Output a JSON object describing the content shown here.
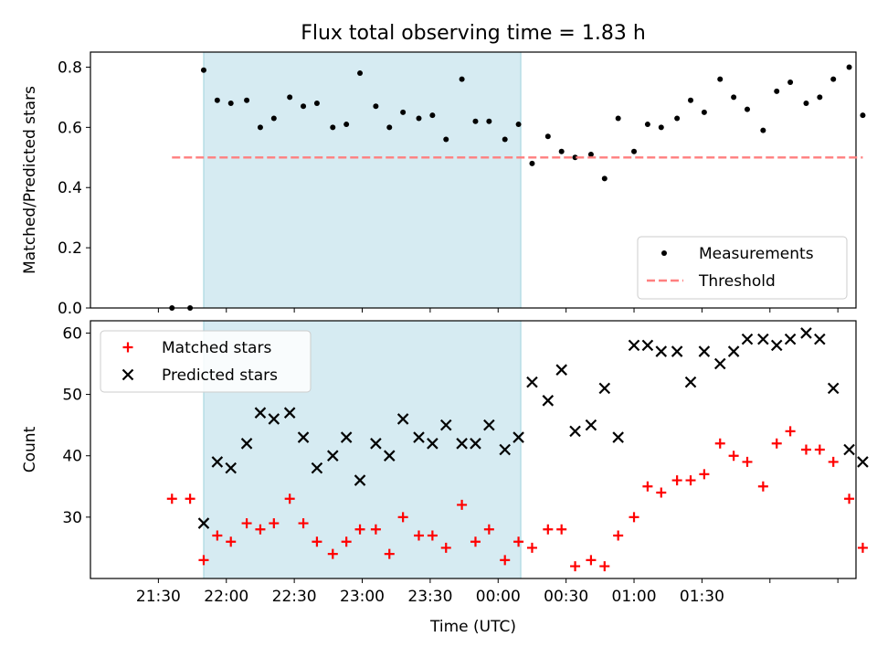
{
  "title": "Flux total observing time = 1.83 h",
  "chart_data": [
    {
      "panel": "top",
      "type": "scatter",
      "ylabel": "Matched/Predicted stars",
      "ylim": [
        0,
        0.85
      ],
      "yticks": [
        0.0,
        0.2,
        0.4,
        0.6,
        0.8
      ],
      "ytick_labels": [
        "0.0",
        "0.2",
        "0.4",
        "0.6",
        "0.8"
      ],
      "x_unit": "minutes after 21:30 UTC",
      "xlim": [
        -30,
        308
      ],
      "highlight_span": {
        "start": 20,
        "end": 160
      },
      "legend": {
        "position": "lower-right",
        "entries": [
          "Measurements",
          "Threshold"
        ]
      },
      "series": [
        {
          "name": "Measurements",
          "color": "#000000",
          "points": [
            [
              6,
              0.0
            ],
            [
              14,
              0.0
            ],
            [
              20,
              0.79
            ],
            [
              26,
              0.69
            ],
            [
              32,
              0.68
            ],
            [
              39,
              0.69
            ],
            [
              45,
              0.6
            ],
            [
              51,
              0.63
            ],
            [
              58,
              0.7
            ],
            [
              64,
              0.67
            ],
            [
              70,
              0.68
            ],
            [
              77,
              0.6
            ],
            [
              83,
              0.61
            ],
            [
              89,
              0.78
            ],
            [
              96,
              0.67
            ],
            [
              102,
              0.6
            ],
            [
              108,
              0.65
            ],
            [
              115,
              0.63
            ],
            [
              121,
              0.64
            ],
            [
              127,
              0.56
            ],
            [
              134,
              0.76
            ],
            [
              140,
              0.62
            ],
            [
              146,
              0.62
            ],
            [
              153,
              0.56
            ],
            [
              159,
              0.61
            ],
            [
              165,
              0.48
            ],
            [
              172,
              0.57
            ],
            [
              178,
              0.52
            ],
            [
              184,
              0.5
            ],
            [
              191,
              0.51
            ],
            [
              197,
              0.43
            ],
            [
              203,
              0.63
            ],
            [
              210,
              0.52
            ],
            [
              216,
              0.61
            ],
            [
              222,
              0.6
            ],
            [
              229,
              0.63
            ],
            [
              235,
              0.69
            ],
            [
              241,
              0.65
            ],
            [
              248,
              0.76
            ],
            [
              254,
              0.7
            ],
            [
              260,
              0.66
            ],
            [
              267,
              0.59
            ],
            [
              273,
              0.72
            ],
            [
              279,
              0.75
            ],
            [
              286,
              0.68
            ],
            [
              292,
              0.7
            ],
            [
              298,
              0.76
            ],
            [
              305,
              0.8
            ],
            [
              311,
              0.64
            ]
          ]
        },
        {
          "name": "Threshold",
          "color": "#ff7f7f",
          "style": "dashed",
          "value": 0.5,
          "x_range": [
            6,
            311
          ]
        }
      ]
    },
    {
      "panel": "bottom",
      "type": "scatter",
      "ylabel": "Count",
      "xlabel": "Time (UTC)",
      "ylim": [
        20,
        62
      ],
      "yticks": [
        30,
        40,
        50,
        60
      ],
      "ytick_labels": [
        "30",
        "40",
        "50",
        "60"
      ],
      "x_unit": "minutes after 21:30 UTC",
      "xlim": [
        -30,
        308
      ],
      "xticks": [
        0,
        30,
        60,
        90,
        120,
        150,
        180,
        210,
        240,
        270,
        300
      ],
      "xtick_labels": [
        "21:30",
        "22:00",
        "22:30",
        "23:00",
        "23:30",
        "00:00",
        "00:30",
        "01:00",
        "01:30",
        "",
        ""
      ],
      "highlight_span": {
        "start": 20,
        "end": 160
      },
      "legend": {
        "position": "top-left",
        "entries": [
          "Matched stars",
          "Predicted stars"
        ]
      },
      "series": [
        {
          "name": "Matched stars",
          "marker": "plus",
          "color": "#ff0000",
          "points": [
            [
              6,
              33
            ],
            [
              14,
              33
            ],
            [
              20,
              23
            ],
            [
              26,
              27
            ],
            [
              32,
              26
            ],
            [
              39,
              29
            ],
            [
              45,
              28
            ],
            [
              51,
              29
            ],
            [
              58,
              33
            ],
            [
              64,
              29
            ],
            [
              70,
              26
            ],
            [
              77,
              24
            ],
            [
              83,
              26
            ],
            [
              89,
              28
            ],
            [
              96,
              28
            ],
            [
              102,
              24
            ],
            [
              108,
              30
            ],
            [
              115,
              27
            ],
            [
              121,
              27
            ],
            [
              127,
              25
            ],
            [
              134,
              32
            ],
            [
              140,
              26
            ],
            [
              146,
              28
            ],
            [
              153,
              23
            ],
            [
              159,
              26
            ],
            [
              165,
              25
            ],
            [
              172,
              28
            ],
            [
              178,
              28
            ],
            [
              184,
              22
            ],
            [
              191,
              23
            ],
            [
              197,
              22
            ],
            [
              203,
              27
            ],
            [
              210,
              30
            ],
            [
              216,
              35
            ],
            [
              222,
              34
            ],
            [
              229,
              36
            ],
            [
              235,
              36
            ],
            [
              241,
              37
            ],
            [
              248,
              42
            ],
            [
              254,
              40
            ],
            [
              260,
              39
            ],
            [
              267,
              35
            ],
            [
              273,
              42
            ],
            [
              279,
              44
            ],
            [
              286,
              41
            ],
            [
              292,
              41
            ],
            [
              298,
              39
            ],
            [
              305,
              33
            ],
            [
              311,
              25
            ]
          ]
        },
        {
          "name": "Predicted stars",
          "marker": "x",
          "color": "#000000",
          "points": [
            [
              20,
              29
            ],
            [
              26,
              39
            ],
            [
              32,
              38
            ],
            [
              39,
              42
            ],
            [
              45,
              47
            ],
            [
              51,
              46
            ],
            [
              58,
              47
            ],
            [
              64,
              43
            ],
            [
              70,
              38
            ],
            [
              77,
              40
            ],
            [
              83,
              43
            ],
            [
              89,
              36
            ],
            [
              96,
              42
            ],
            [
              102,
              40
            ],
            [
              108,
              46
            ],
            [
              115,
              43
            ],
            [
              121,
              42
            ],
            [
              127,
              45
            ],
            [
              134,
              42
            ],
            [
              140,
              42
            ],
            [
              146,
              45
            ],
            [
              153,
              41
            ],
            [
              159,
              43
            ],
            [
              165,
              52
            ],
            [
              172,
              49
            ],
            [
              178,
              54
            ],
            [
              184,
              44
            ],
            [
              191,
              45
            ],
            [
              197,
              51
            ],
            [
              203,
              43
            ],
            [
              210,
              58
            ],
            [
              216,
              58
            ],
            [
              222,
              57
            ],
            [
              229,
              57
            ],
            [
              235,
              52
            ],
            [
              241,
              57
            ],
            [
              248,
              55
            ],
            [
              254,
              57
            ],
            [
              260,
              59
            ],
            [
              267,
              59
            ],
            [
              273,
              58
            ],
            [
              279,
              59
            ],
            [
              286,
              60
            ],
            [
              292,
              59
            ],
            [
              298,
              51
            ],
            [
              305,
              41
            ],
            [
              311,
              39
            ]
          ]
        }
      ]
    }
  ]
}
